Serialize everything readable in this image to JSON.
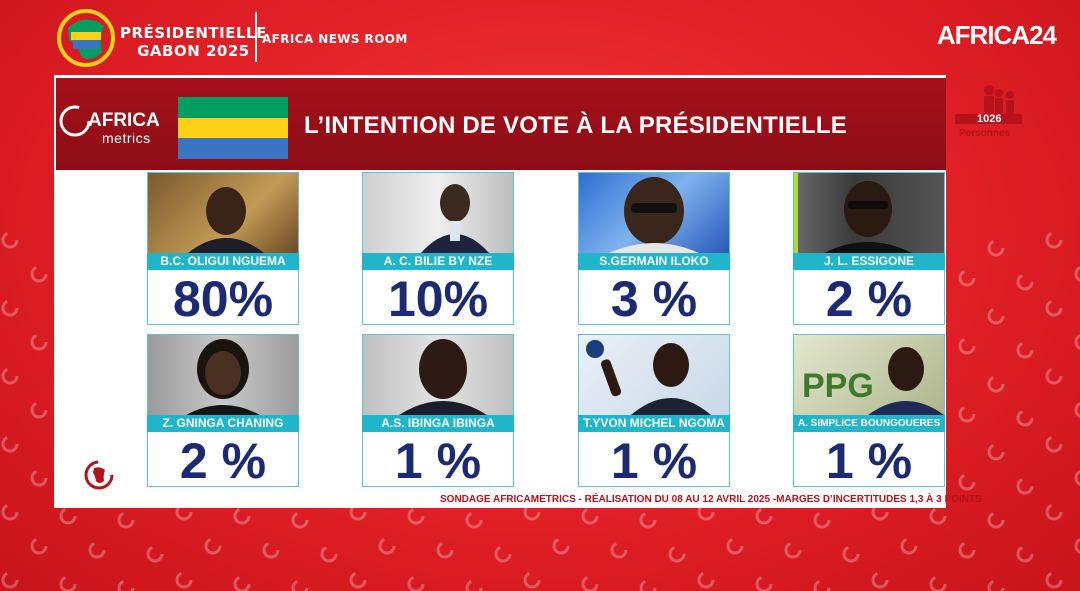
{
  "header": {
    "event_title_line1": "PRÉSIDENTIELLE",
    "event_title_line2": "GABON 2025",
    "program": "AFRICA NEWS ROOM",
    "channel": "AFRICA",
    "channel_suffix": "24"
  },
  "panel": {
    "brand_top": "AFRICA",
    "brand_bottom": "metrics",
    "headline": "L’INTENTION DE VOTE À LA PRÉSIDENTIELLE",
    "sample_count": "1026",
    "sample_label": "Personnes"
  },
  "candidates": [
    {
      "name": "B.C. OLIGUI NGUEMA",
      "pct": "80%"
    },
    {
      "name": "A. C. BILIE BY NZE",
      "pct": "10%"
    },
    {
      "name": "S.GERMAIN ILOKO",
      "pct": "3 %"
    },
    {
      "name": "J. L. ESSIGONE",
      "pct": "2 %"
    },
    {
      "name": "Z. GNINGA CHANING",
      "pct": "2 %"
    },
    {
      "name": "A.S. IBINGA IBINGA",
      "pct": "1 %"
    },
    {
      "name": "T.YVON MICHEL NGOMA",
      "pct": "1 %"
    },
    {
      "name": "A. SIMPLICE BOUNGOUERES",
      "pct": "1 %"
    }
  ],
  "footnote": "SONDAGE AFRICAMETRICS - RÉALISATION DU 08 AU 12 AVRIL 2025 -MARGES D’INCERTITUDES 1,3 À 3 POINTS",
  "colors": {
    "background": "#e11f26",
    "header_band": "#9a0f18",
    "name_bar": "#1fb6cc",
    "percentage": "#1b2a73",
    "flag_green": "#009e60",
    "flag_yellow": "#fcd116",
    "flag_blue": "#3a75c4"
  }
}
